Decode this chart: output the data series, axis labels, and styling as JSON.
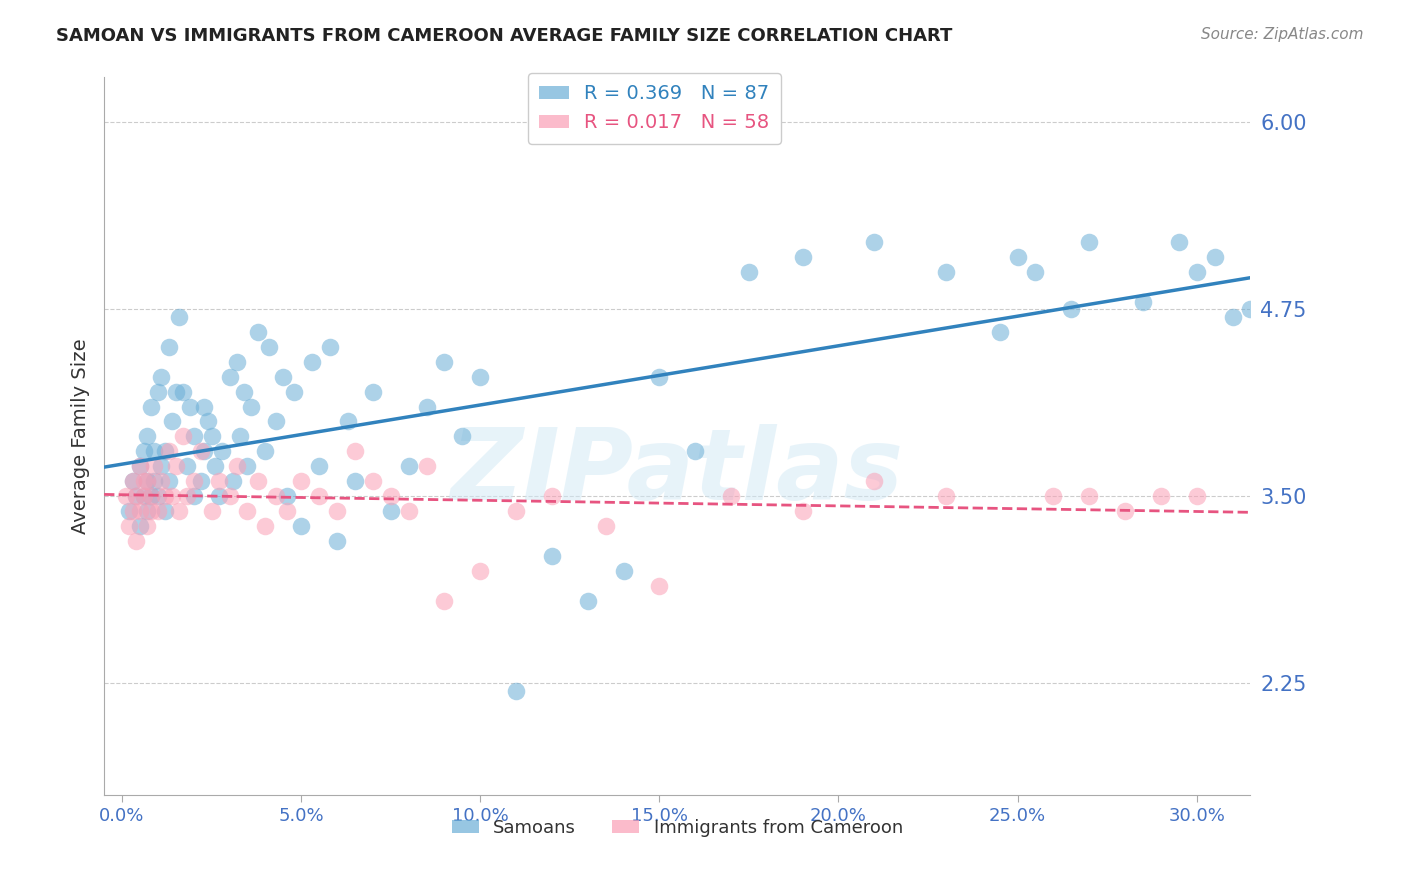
{
  "title": "SAMOAN VS IMMIGRANTS FROM CAMEROON AVERAGE FAMILY SIZE CORRELATION CHART",
  "source": "Source: ZipAtlas.com",
  "ylabel": "Average Family Size",
  "xlabel_ticks": [
    "0.0%",
    "5.0%",
    "10.0%",
    "15.0%",
    "20.0%",
    "25.0%",
    "30.0%"
  ],
  "xlabel_vals": [
    0.0,
    0.05,
    0.1,
    0.15,
    0.2,
    0.25,
    0.3
  ],
  "ytick_labels": [
    "2.25",
    "3.50",
    "4.75",
    "6.00"
  ],
  "ytick_vals": [
    2.25,
    3.5,
    4.75,
    6.0
  ],
  "ylim": [
    1.5,
    6.3
  ],
  "xlim": [
    -0.005,
    0.315
  ],
  "legend_entries": [
    {
      "label": "R = 0.369   N = 87",
      "color": "#6baed6"
    },
    {
      "label": "R = 0.017   N = 58",
      "color": "#fa9fb5"
    }
  ],
  "legend_names": [
    "Samoans",
    "Immigrants from Cameroon"
  ],
  "watermark": "ZIPatlas",
  "blue_color": "#6baed6",
  "pink_color": "#fa9fb5",
  "blue_line_color": "#3182bd",
  "pink_line_color": "#e75480",
  "axis_color": "#4472c4",
  "background_color": "#ffffff",
  "grid_color": "#cccccc",
  "samoans_x": [
    0.002,
    0.003,
    0.004,
    0.005,
    0.005,
    0.006,
    0.006,
    0.007,
    0.007,
    0.007,
    0.008,
    0.008,
    0.009,
    0.009,
    0.01,
    0.01,
    0.011,
    0.011,
    0.012,
    0.012,
    0.013,
    0.013,
    0.014,
    0.015,
    0.016,
    0.017,
    0.018,
    0.019,
    0.02,
    0.02,
    0.022,
    0.023,
    0.023,
    0.024,
    0.025,
    0.026,
    0.027,
    0.028,
    0.03,
    0.031,
    0.032,
    0.033,
    0.034,
    0.035,
    0.036,
    0.038,
    0.04,
    0.041,
    0.043,
    0.045,
    0.046,
    0.048,
    0.05,
    0.053,
    0.055,
    0.058,
    0.06,
    0.063,
    0.065,
    0.07,
    0.075,
    0.08,
    0.085,
    0.09,
    0.095,
    0.1,
    0.11,
    0.12,
    0.13,
    0.14,
    0.15,
    0.16,
    0.175,
    0.19,
    0.21,
    0.23,
    0.25,
    0.27,
    0.285,
    0.295,
    0.3,
    0.305,
    0.31,
    0.315,
    0.265,
    0.255,
    0.245
  ],
  "samoans_y": [
    3.4,
    3.6,
    3.5,
    3.3,
    3.7,
    3.5,
    3.8,
    3.4,
    3.6,
    3.9,
    3.5,
    4.1,
    3.6,
    3.8,
    3.5,
    4.2,
    3.7,
    4.3,
    3.8,
    3.4,
    4.5,
    3.6,
    4.0,
    4.2,
    4.7,
    4.2,
    3.7,
    4.1,
    3.5,
    3.9,
    3.6,
    4.1,
    3.8,
    4.0,
    3.9,
    3.7,
    3.5,
    3.8,
    4.3,
    3.6,
    4.4,
    3.9,
    4.2,
    3.7,
    4.1,
    4.6,
    3.8,
    4.5,
    4.0,
    4.3,
    3.5,
    4.2,
    3.3,
    4.4,
    3.7,
    4.5,
    3.2,
    4.0,
    3.6,
    4.2,
    3.4,
    3.7,
    4.1,
    4.4,
    3.9,
    4.3,
    2.2,
    3.1,
    2.8,
    3.0,
    4.3,
    3.8,
    5.0,
    5.1,
    5.2,
    5.0,
    5.1,
    5.2,
    4.8,
    5.2,
    5.0,
    5.1,
    4.7,
    4.75,
    4.75,
    5.0,
    4.6
  ],
  "cameroon_x": [
    0.001,
    0.002,
    0.003,
    0.003,
    0.004,
    0.004,
    0.005,
    0.005,
    0.006,
    0.006,
    0.007,
    0.007,
    0.008,
    0.008,
    0.009,
    0.01,
    0.011,
    0.012,
    0.013,
    0.014,
    0.015,
    0.016,
    0.017,
    0.018,
    0.02,
    0.022,
    0.025,
    0.027,
    0.03,
    0.032,
    0.035,
    0.038,
    0.04,
    0.043,
    0.046,
    0.05,
    0.055,
    0.06,
    0.065,
    0.07,
    0.075,
    0.08,
    0.085,
    0.09,
    0.1,
    0.11,
    0.12,
    0.135,
    0.15,
    0.17,
    0.19,
    0.21,
    0.23,
    0.26,
    0.27,
    0.28,
    0.29,
    0.3
  ],
  "cameroon_y": [
    3.5,
    3.3,
    3.6,
    3.4,
    3.5,
    3.2,
    3.7,
    3.4,
    3.5,
    3.6,
    3.3,
    3.6,
    3.4,
    3.5,
    3.7,
    3.4,
    3.6,
    3.5,
    3.8,
    3.5,
    3.7,
    3.4,
    3.9,
    3.5,
    3.6,
    3.8,
    3.4,
    3.6,
    3.5,
    3.7,
    3.4,
    3.6,
    3.3,
    3.5,
    3.4,
    3.6,
    3.5,
    3.4,
    3.8,
    3.6,
    3.5,
    3.4,
    3.7,
    2.8,
    3.0,
    3.4,
    3.5,
    3.3,
    2.9,
    3.5,
    3.4,
    3.6,
    3.5,
    3.5,
    3.5,
    3.4,
    3.5,
    3.5
  ]
}
